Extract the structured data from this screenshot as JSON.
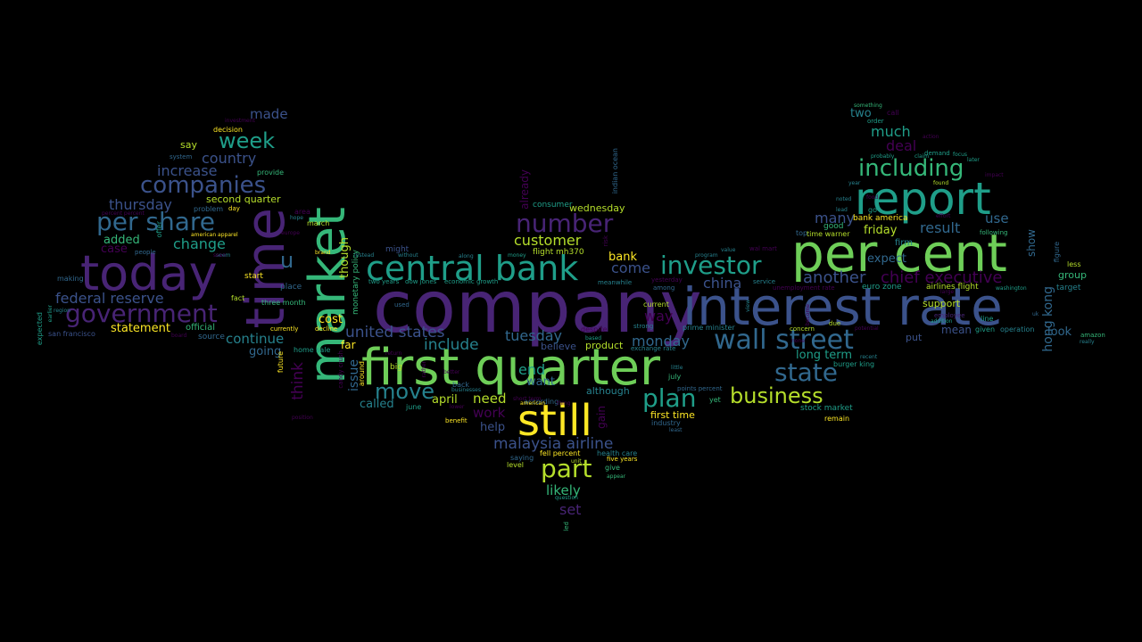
{
  "palette": {
    "purple": "#482475",
    "violet": "#440154",
    "indigo": "#3b528b",
    "blue": "#31688e",
    "teal": "#26828e",
    "aqua": "#1f9e89",
    "green": "#35b779",
    "lime": "#6ece58",
    "yellowgreen": "#b5de2b",
    "yellow": "#fde725"
  },
  "words": [
    {
      "text": "company",
      "color": "purple"
    },
    {
      "text": "interest rate",
      "color": "indigo"
    },
    {
      "text": "first quarter",
      "color": "lime"
    },
    {
      "text": "per cent",
      "color": "lime"
    },
    {
      "text": "still",
      "color": "yellow"
    },
    {
      "text": "today",
      "color": "purple"
    },
    {
      "text": "time",
      "color": "purple"
    },
    {
      "text": "market",
      "color": "green"
    },
    {
      "text": "report",
      "color": "aqua"
    },
    {
      "text": "central bank",
      "color": "aqua"
    },
    {
      "text": "wall street",
      "color": "blue"
    },
    {
      "text": "investor",
      "color": "aqua"
    },
    {
      "text": "number",
      "color": "purple"
    },
    {
      "text": "plan",
      "color": "aqua"
    },
    {
      "text": "state",
      "color": "blue"
    },
    {
      "text": "part",
      "color": "yellowgreen"
    },
    {
      "text": "government",
      "color": "purple"
    },
    {
      "text": "per share",
      "color": "blue"
    },
    {
      "text": "companies",
      "color": "indigo"
    },
    {
      "text": "including",
      "color": "green"
    },
    {
      "text": "business",
      "color": "yellowgreen"
    },
    {
      "text": "move",
      "color": "teal"
    },
    {
      "text": "week",
      "color": "aqua"
    },
    {
      "text": "u",
      "color": "blue"
    },
    {
      "text": "chief executive",
      "color": "violet"
    },
    {
      "text": "another",
      "color": "indigo"
    },
    {
      "text": "malaysia airline",
      "color": "indigo"
    },
    {
      "text": "united states",
      "color": "indigo"
    },
    {
      "text": "federal reserve",
      "color": "indigo"
    },
    {
      "text": "result",
      "color": "blue"
    },
    {
      "text": "monday",
      "color": "blue"
    },
    {
      "text": "customer",
      "color": "yellowgreen"
    },
    {
      "text": "include",
      "color": "teal"
    },
    {
      "text": "tuesday",
      "color": "blue"
    },
    {
      "text": "thursday",
      "color": "indigo"
    },
    {
      "text": "country",
      "color": "indigo"
    },
    {
      "text": "increase",
      "color": "indigo"
    },
    {
      "text": "much",
      "color": "aqua"
    },
    {
      "text": "deal",
      "color": "violet"
    },
    {
      "text": "change",
      "color": "aqua"
    },
    {
      "text": "continue",
      "color": "teal"
    },
    {
      "text": "come",
      "color": "indigo"
    },
    {
      "text": "china",
      "color": "indigo"
    },
    {
      "text": "way",
      "color": "violet"
    },
    {
      "text": "many",
      "color": "indigo"
    },
    {
      "text": "friday",
      "color": "yellowgreen"
    },
    {
      "text": "use",
      "color": "blue"
    },
    {
      "text": "need",
      "color": "yellowgreen"
    },
    {
      "text": "work",
      "color": "violet"
    },
    {
      "text": "likely",
      "color": "green"
    },
    {
      "text": "set",
      "color": "purple"
    },
    {
      "text": "end",
      "color": "aqua"
    },
    {
      "text": "help",
      "color": "indigo"
    },
    {
      "text": "want",
      "color": "blue"
    },
    {
      "text": "called",
      "color": "teal"
    },
    {
      "text": "april",
      "color": "yellowgreen"
    },
    {
      "text": "added",
      "color": "green"
    },
    {
      "text": "case",
      "color": "violet"
    },
    {
      "text": "made",
      "color": "indigo"
    },
    {
      "text": "statement",
      "color": "yellow"
    },
    {
      "text": "second quarter",
      "color": "yellowgreen"
    },
    {
      "text": "expect",
      "color": "blue"
    },
    {
      "text": "long term",
      "color": "aqua"
    },
    {
      "text": "two",
      "color": "teal"
    },
    {
      "text": "bank",
      "color": "yellow"
    },
    {
      "text": "going",
      "color": "blue"
    },
    {
      "text": "cost",
      "color": "yellow"
    },
    {
      "text": "far",
      "color": "yellow"
    },
    {
      "text": "mean",
      "color": "indigo"
    },
    {
      "text": "look",
      "color": "blue"
    },
    {
      "text": "believe",
      "color": "indigo"
    },
    {
      "text": "support",
      "color": "yellowgreen"
    },
    {
      "text": "put",
      "color": "indigo"
    },
    {
      "text": "group",
      "color": "green"
    },
    {
      "text": "product",
      "color": "yellowgreen"
    },
    {
      "text": "wednesday",
      "color": "yellowgreen"
    },
    {
      "text": "say",
      "color": "yellowgreen"
    },
    {
      "text": "first time",
      "color": "yellow"
    },
    {
      "text": "firm",
      "color": "teal"
    },
    {
      "text": "stock market",
      "color": "aqua"
    },
    {
      "text": "official",
      "color": "green"
    },
    {
      "text": "source",
      "color": "blue"
    },
    {
      "text": "airlines flight",
      "color": "yellowgreen"
    },
    {
      "text": "bank america",
      "color": "yellow"
    },
    {
      "text": "good",
      "color": "green"
    },
    {
      "text": "time warner",
      "color": "yellowgreen"
    },
    {
      "text": "top",
      "color": "blue"
    },
    {
      "text": "flight mh370",
      "color": "yellowgreen"
    },
    {
      "text": "although",
      "color": "teal"
    },
    {
      "text": "euro zone",
      "color": "aqua"
    },
    {
      "text": "decision",
      "color": "yellow"
    },
    {
      "text": "start",
      "color": "yellow"
    },
    {
      "text": "big",
      "color": "yellowgreen"
    },
    {
      "text": "current",
      "color": "yellowgreen"
    },
    {
      "text": "fact",
      "color": "yellowgreen"
    },
    {
      "text": "place",
      "color": "blue"
    },
    {
      "text": "home sale",
      "color": "aqua"
    },
    {
      "text": "three month",
      "color": "green"
    },
    {
      "text": "march",
      "color": "yellowgreen"
    },
    {
      "text": "might",
      "color": "indigo"
    },
    {
      "text": "june",
      "color": "aqua"
    },
    {
      "text": "prime minister",
      "color": "teal"
    },
    {
      "text": "despite",
      "color": "violet"
    },
    {
      "text": "consumer",
      "color": "aqua"
    },
    {
      "text": "industry",
      "color": "blue"
    },
    {
      "text": "remain",
      "color": "yellow"
    },
    {
      "text": "july",
      "color": "green"
    },
    {
      "text": "back",
      "color": "blue"
    },
    {
      "text": "yet",
      "color": "green"
    },
    {
      "text": "area",
      "color": "violet"
    },
    {
      "text": "san francisco",
      "color": "indigo"
    },
    {
      "text": "making",
      "color": "blue"
    },
    {
      "text": "problem",
      "color": "blue"
    },
    {
      "text": "day",
      "color": "yellow"
    },
    {
      "text": "provide",
      "color": "green"
    },
    {
      "text": "system",
      "color": "blue"
    },
    {
      "text": "health care",
      "color": "teal"
    },
    {
      "text": "five years",
      "color": "yellow"
    },
    {
      "text": "give",
      "color": "green"
    },
    {
      "text": "saying",
      "color": "blue"
    },
    {
      "text": "level",
      "color": "yellowgreen"
    },
    {
      "text": "fell percent",
      "color": "yellow"
    },
    {
      "text": "benefit",
      "color": "yellow"
    },
    {
      "text": "used",
      "color": "blue"
    },
    {
      "text": "people",
      "color": "blue"
    },
    {
      "text": "hong kong",
      "color": "blue"
    },
    {
      "text": "show",
      "color": "blue"
    },
    {
      "text": "figure",
      "color": "blue"
    },
    {
      "text": "less",
      "color": "yellowgreen"
    },
    {
      "text": "target",
      "color": "teal"
    },
    {
      "text": "amazon",
      "color": "green"
    },
    {
      "text": "given",
      "color": "aqua"
    },
    {
      "text": "line",
      "color": "aqua"
    },
    {
      "text": "following",
      "color": "green"
    },
    {
      "text": "according",
      "color": "blue"
    },
    {
      "text": "already",
      "color": "violet"
    },
    {
      "text": "though",
      "color": "yellowgreen"
    },
    {
      "text": "monetary policy",
      "color": "green"
    },
    {
      "text": "think",
      "color": "violet"
    },
    {
      "text": "issue",
      "color": "blue"
    },
    {
      "text": "around",
      "color": "yellow"
    },
    {
      "text": "offer",
      "color": "aqua"
    },
    {
      "text": "expected",
      "color": "aqua"
    },
    {
      "text": "indian ocean",
      "color": "blue"
    },
    {
      "text": "future",
      "color": "yellow"
    },
    {
      "text": "gain",
      "color": "violet"
    },
    {
      "text": "burger king",
      "color": "aqua"
    },
    {
      "text": "concern",
      "color": "yellowgreen"
    },
    {
      "text": "employee",
      "color": "purple"
    },
    {
      "text": "operation",
      "color": "teal"
    },
    {
      "text": "due",
      "color": "yellowgreen"
    },
    {
      "text": "strong",
      "color": "teal"
    },
    {
      "text": "among",
      "color": "blue"
    },
    {
      "text": "yesterday",
      "color": "violet"
    },
    {
      "text": "meanwhile",
      "color": "teal"
    },
    {
      "text": "service",
      "color": "teal"
    },
    {
      "text": "unemployment rate",
      "color": "violet"
    },
    {
      "text": "wal mart",
      "color": "violet"
    },
    {
      "text": "program",
      "color": "teal"
    },
    {
      "text": "value",
      "color": "teal"
    },
    {
      "text": "american apparel",
      "color": "yellow"
    },
    {
      "text": "currently",
      "color": "yellow"
    },
    {
      "text": "decline",
      "color": "yellow"
    },
    {
      "text": "two years",
      "color": "aqua"
    },
    {
      "text": "dow jones",
      "color": "aqua"
    },
    {
      "text": "economic growth",
      "color": "aqua"
    },
    {
      "text": "exchange rate",
      "color": "teal"
    },
    {
      "text": "points percent",
      "color": "blue"
    },
    {
      "text": "demand",
      "color": "aqua"
    },
    {
      "text": "order",
      "color": "aqua"
    },
    {
      "text": "call",
      "color": "violet"
    },
    {
      "text": "something",
      "color": "green"
    },
    {
      "text": "probably",
      "color": "aqua"
    },
    {
      "text": "claim",
      "color": "aqua"
    },
    {
      "text": "focus",
      "color": "aqua"
    },
    {
      "text": "later",
      "color": "aqua"
    },
    {
      "text": "found",
      "color": "yellowgreen"
    },
    {
      "text": "action",
      "color": "violet"
    },
    {
      "text": "effort",
      "color": "violet"
    },
    {
      "text": "large",
      "color": "violet"
    },
    {
      "text": "impact",
      "color": "violet"
    },
    {
      "text": "go",
      "color": "aqua"
    },
    {
      "text": "lead",
      "color": "teal"
    },
    {
      "text": "noted",
      "color": "teal"
    },
    {
      "text": "food",
      "color": "violet"
    },
    {
      "text": "year",
      "color": "teal"
    },
    {
      "text": "recent",
      "color": "teal"
    },
    {
      "text": "potential",
      "color": "violet"
    },
    {
      "text": "addition",
      "color": "aqua"
    },
    {
      "text": "washington",
      "color": "aqua"
    },
    {
      "text": "really",
      "color": "teal"
    },
    {
      "text": "investment",
      "color": "violet"
    },
    {
      "text": "percent percent",
      "color": "violet"
    },
    {
      "text": "hope",
      "color": "teal"
    },
    {
      "text": "europe",
      "color": "violet"
    },
    {
      "text": "brand",
      "color": "yellow"
    },
    {
      "text": "instead",
      "color": "teal"
    },
    {
      "text": "without",
      "color": "teal"
    },
    {
      "text": "along",
      "color": "teal"
    },
    {
      "text": "return",
      "color": "violet"
    },
    {
      "text": "better",
      "color": "violet"
    },
    {
      "text": "businesses",
      "color": "teal"
    },
    {
      "text": "american",
      "color": "yellow"
    },
    {
      "text": "thing",
      "color": "violet"
    },
    {
      "text": "question",
      "color": "aqua"
    },
    {
      "text": "appear",
      "color": "green"
    },
    {
      "text": "unit",
      "color": "yellowgreen"
    },
    {
      "text": "short term",
      "color": "violet"
    },
    {
      "text": "rather",
      "color": "violet"
    },
    {
      "text": "based",
      "color": "aqua"
    },
    {
      "text": "least",
      "color": "blue"
    },
    {
      "text": "little",
      "color": "teal"
    },
    {
      "text": "led",
      "color": "green"
    },
    {
      "text": "earlier",
      "color": "aqua"
    },
    {
      "text": "region",
      "color": "teal"
    },
    {
      "text": "seem",
      "color": "teal"
    },
    {
      "text": "money",
      "color": "aqua"
    },
    {
      "text": "candy crush",
      "color": "violet"
    },
    {
      "text": "view",
      "color": "teal"
    },
    {
      "text": "become",
      "color": "violet"
    },
    {
      "text": "position",
      "color": "violet"
    },
    {
      "text": "board",
      "color": "violet"
    },
    {
      "text": "seen",
      "color": "violet"
    },
    {
      "text": "lower",
      "color": "violet"
    },
    {
      "text": "none",
      "color": "violet"
    },
    {
      "text": "uk",
      "color": "blue"
    },
    {
      "text": "risk",
      "color": "violet"
    }
  ]
}
